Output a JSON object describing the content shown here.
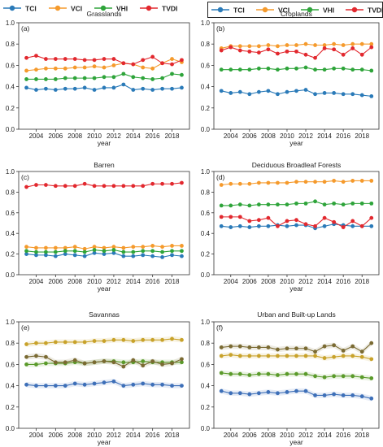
{
  "legend_left": [
    {
      "name": "TCI",
      "color": "#2a7ab8"
    },
    {
      "name": "VCI",
      "color": "#f59a2c"
    },
    {
      "name": "VHI",
      "color": "#2ea43a"
    },
    {
      "name": "TVDI",
      "color": "#e2282e"
    }
  ],
  "legend_right": [
    {
      "name": "TCI",
      "color": "#2a7ab8"
    },
    {
      "name": "VCI",
      "color": "#f59a2c"
    },
    {
      "name": "VHI",
      "color": "#2ea43a"
    },
    {
      "name": "TVDI",
      "color": "#e2282e"
    }
  ],
  "chart_data": [
    {
      "type": "line",
      "panel": "(a)",
      "title": "Grasslands",
      "xlabel": "year",
      "ylabel": "",
      "x": [
        2003,
        2004,
        2005,
        2006,
        2007,
        2008,
        2009,
        2010,
        2011,
        2012,
        2013,
        2014,
        2015,
        2016,
        2017,
        2018,
        2019
      ],
      "xticks": [
        "2004",
        "2006",
        "2008",
        "2010",
        "2012",
        "2014",
        "2016",
        "2018"
      ],
      "ylim": [
        0,
        1.0
      ],
      "yticks": [
        "0.0",
        "0.2",
        "0.4",
        "0.6",
        "0.8",
        "1.0"
      ],
      "style": "plain",
      "series": [
        {
          "name": "TCI",
          "color": "#2a7ab8",
          "values": [
            0.39,
            0.37,
            0.38,
            0.37,
            0.38,
            0.38,
            0.39,
            0.37,
            0.39,
            0.39,
            0.42,
            0.37,
            0.38,
            0.37,
            0.38,
            0.38,
            0.39
          ]
        },
        {
          "name": "VCI",
          "color": "#f59a2c",
          "values": [
            0.55,
            0.56,
            0.57,
            0.57,
            0.57,
            0.58,
            0.58,
            0.59,
            0.58,
            0.6,
            0.62,
            0.61,
            0.58,
            0.57,
            0.62,
            0.66,
            0.63
          ]
        },
        {
          "name": "VHI",
          "color": "#2ea43a",
          "values": [
            0.47,
            0.47,
            0.47,
            0.47,
            0.48,
            0.48,
            0.48,
            0.48,
            0.49,
            0.49,
            0.52,
            0.49,
            0.48,
            0.47,
            0.48,
            0.52,
            0.51
          ]
        },
        {
          "name": "TVDI",
          "color": "#e2282e",
          "values": [
            0.67,
            0.69,
            0.66,
            0.66,
            0.66,
            0.66,
            0.65,
            0.65,
            0.66,
            0.66,
            0.62,
            0.61,
            0.65,
            0.68,
            0.62,
            0.61,
            0.65
          ]
        }
      ]
    },
    {
      "type": "line",
      "panel": "(b)",
      "title": "Croplands",
      "xlabel": "year",
      "ylabel": "",
      "x": [
        2003,
        2004,
        2005,
        2006,
        2007,
        2008,
        2009,
        2010,
        2011,
        2012,
        2013,
        2014,
        2015,
        2016,
        2017,
        2018,
        2019
      ],
      "xticks": [
        "2004",
        "2006",
        "2008",
        "2010",
        "2012",
        "2014",
        "2016",
        "2018"
      ],
      "ylim": [
        0,
        1.0
      ],
      "yticks": [
        "0.0",
        "0.2",
        "0.4",
        "0.6",
        "0.8",
        "1.0"
      ],
      "style": "plain",
      "series": [
        {
          "name": "TCI",
          "color": "#2a7ab8",
          "values": [
            0.36,
            0.34,
            0.35,
            0.33,
            0.35,
            0.36,
            0.33,
            0.35,
            0.36,
            0.37,
            0.33,
            0.34,
            0.34,
            0.33,
            0.33,
            0.32,
            0.31
          ]
        },
        {
          "name": "VCI",
          "color": "#f59a2c",
          "values": [
            0.76,
            0.78,
            0.78,
            0.78,
            0.78,
            0.79,
            0.78,
            0.79,
            0.79,
            0.8,
            0.79,
            0.79,
            0.8,
            0.79,
            0.8,
            0.8,
            0.8
          ]
        },
        {
          "name": "VHI",
          "color": "#2ea43a",
          "values": [
            0.56,
            0.56,
            0.56,
            0.56,
            0.57,
            0.57,
            0.56,
            0.57,
            0.57,
            0.58,
            0.56,
            0.56,
            0.57,
            0.57,
            0.56,
            0.56,
            0.55
          ]
        },
        {
          "name": "TVDI",
          "color": "#e2282e",
          "values": [
            0.74,
            0.77,
            0.74,
            0.73,
            0.72,
            0.75,
            0.71,
            0.73,
            0.73,
            0.7,
            0.67,
            0.76,
            0.75,
            0.7,
            0.76,
            0.7,
            0.77
          ]
        }
      ]
    },
    {
      "type": "line",
      "panel": "(c)",
      "title": "Barren",
      "xlabel": "year",
      "ylabel": "",
      "x": [
        2003,
        2004,
        2005,
        2006,
        2007,
        2008,
        2009,
        2010,
        2011,
        2012,
        2013,
        2014,
        2015,
        2016,
        2017,
        2018,
        2019
      ],
      "xticks": [
        "2004",
        "2006",
        "2008",
        "2010",
        "2012",
        "2014",
        "2016",
        "2018"
      ],
      "ylim": [
        0,
        1.0
      ],
      "yticks": [
        "0.0",
        "0.2",
        "0.4",
        "0.6",
        "0.8",
        "1.0"
      ],
      "style": "plain",
      "series": [
        {
          "name": "TCI",
          "color": "#2a7ab8",
          "values": [
            0.2,
            0.19,
            0.19,
            0.18,
            0.2,
            0.19,
            0.18,
            0.21,
            0.2,
            0.21,
            0.18,
            0.18,
            0.19,
            0.18,
            0.17,
            0.19,
            0.18
          ]
        },
        {
          "name": "VCI",
          "color": "#f59a2c",
          "values": [
            0.27,
            0.26,
            0.26,
            0.26,
            0.26,
            0.27,
            0.25,
            0.27,
            0.26,
            0.27,
            0.26,
            0.27,
            0.27,
            0.28,
            0.27,
            0.28,
            0.28
          ]
        },
        {
          "name": "VHI",
          "color": "#2ea43a",
          "values": [
            0.23,
            0.22,
            0.22,
            0.22,
            0.23,
            0.23,
            0.22,
            0.24,
            0.23,
            0.24,
            0.22,
            0.22,
            0.23,
            0.23,
            0.22,
            0.23,
            0.23
          ]
        },
        {
          "name": "TVDI",
          "color": "#e2282e",
          "values": [
            0.85,
            0.87,
            0.87,
            0.86,
            0.86,
            0.86,
            0.88,
            0.86,
            0.86,
            0.86,
            0.86,
            0.86,
            0.86,
            0.88,
            0.88,
            0.88,
            0.89
          ]
        }
      ]
    },
    {
      "type": "line",
      "panel": "(d)",
      "title": "Deciduous Broadleaf Forests",
      "xlabel": "year",
      "ylabel": "",
      "x": [
        2003,
        2004,
        2005,
        2006,
        2007,
        2008,
        2009,
        2010,
        2011,
        2012,
        2013,
        2014,
        2015,
        2016,
        2017,
        2018,
        2019
      ],
      "xticks": [
        "2004",
        "2006",
        "2008",
        "2010",
        "2012",
        "2014",
        "2016",
        "2018"
      ],
      "ylim": [
        0,
        1.0
      ],
      "yticks": [
        "0.0",
        "0.2",
        "0.4",
        "0.6",
        "0.8",
        "1.0"
      ],
      "style": "plain",
      "series": [
        {
          "name": "TCI",
          "color": "#2a7ab8",
          "values": [
            0.47,
            0.46,
            0.47,
            0.46,
            0.47,
            0.47,
            0.48,
            0.47,
            0.48,
            0.48,
            0.45,
            0.47,
            0.49,
            0.48,
            0.47,
            0.47,
            0.47
          ]
        },
        {
          "name": "VCI",
          "color": "#f59a2c",
          "values": [
            0.87,
            0.88,
            0.88,
            0.88,
            0.89,
            0.89,
            0.89,
            0.89,
            0.9,
            0.9,
            0.9,
            0.9,
            0.91,
            0.9,
            0.91,
            0.91,
            0.91
          ]
        },
        {
          "name": "VHI",
          "color": "#2ea43a",
          "values": [
            0.67,
            0.67,
            0.68,
            0.67,
            0.68,
            0.68,
            0.68,
            0.68,
            0.69,
            0.69,
            0.71,
            0.68,
            0.69,
            0.68,
            0.69,
            0.69,
            0.69
          ]
        },
        {
          "name": "TVDI",
          "color": "#e2282e",
          "values": [
            0.56,
            0.56,
            0.56,
            0.52,
            0.53,
            0.55,
            0.47,
            0.52,
            0.53,
            0.49,
            0.47,
            0.55,
            0.51,
            0.46,
            0.52,
            0.47,
            0.55
          ]
        }
      ]
    },
    {
      "type": "line",
      "panel": "(e)",
      "title": "Savannas",
      "xlabel": "year",
      "ylabel": "",
      "x": [
        2003,
        2004,
        2005,
        2006,
        2007,
        2008,
        2009,
        2010,
        2011,
        2012,
        2013,
        2014,
        2015,
        2016,
        2017,
        2018,
        2019
      ],
      "xticks": [
        "2004",
        "2006",
        "2008",
        "2010",
        "2012",
        "2014",
        "2016",
        "2018"
      ],
      "ylim": [
        0,
        1.0
      ],
      "yticks": [
        "0.0",
        "0.2",
        "0.4",
        "0.6",
        "0.8",
        "1.0"
      ],
      "style": "bands",
      "series": [
        {
          "name": "TCI",
          "color": "#3d6fb8",
          "values": [
            0.41,
            0.4,
            0.4,
            0.4,
            0.4,
            0.42,
            0.41,
            0.42,
            0.43,
            0.44,
            0.4,
            0.41,
            0.42,
            0.41,
            0.41,
            0.4,
            0.4
          ]
        },
        {
          "name": "VCI",
          "color": "#c8a22a",
          "values": [
            0.79,
            0.8,
            0.8,
            0.81,
            0.81,
            0.81,
            0.81,
            0.82,
            0.82,
            0.83,
            0.83,
            0.82,
            0.83,
            0.83,
            0.83,
            0.84,
            0.83
          ]
        },
        {
          "name": "VHI",
          "color": "#5a9a2a",
          "values": [
            0.6,
            0.6,
            0.61,
            0.61,
            0.61,
            0.62,
            0.61,
            0.62,
            0.63,
            0.63,
            0.62,
            0.62,
            0.63,
            0.62,
            0.62,
            0.62,
            0.62
          ]
        },
        {
          "name": "TVDI",
          "color": "#7a6a32",
          "values": [
            0.67,
            0.68,
            0.67,
            0.62,
            0.62,
            0.64,
            0.61,
            0.62,
            0.63,
            0.62,
            0.58,
            0.64,
            0.59,
            0.63,
            0.6,
            0.61,
            0.65
          ]
        }
      ]
    },
    {
      "type": "line",
      "panel": "(f)",
      "title": "Urban and Built-up Lands",
      "xlabel": "year",
      "ylabel": "",
      "x": [
        2003,
        2004,
        2005,
        2006,
        2007,
        2008,
        2009,
        2010,
        2011,
        2012,
        2013,
        2014,
        2015,
        2016,
        2017,
        2018,
        2019
      ],
      "xticks": [
        "2004",
        "2006",
        "2008",
        "2010",
        "2012",
        "2014",
        "2016",
        "2018"
      ],
      "ylim": [
        0,
        1.0
      ],
      "yticks": [
        "0.0",
        "0.2",
        "0.4",
        "0.6",
        "0.8",
        "1.0"
      ],
      "style": "bands",
      "series": [
        {
          "name": "TCI",
          "color": "#3d6fb8",
          "values": [
            0.35,
            0.33,
            0.33,
            0.32,
            0.33,
            0.34,
            0.33,
            0.34,
            0.35,
            0.35,
            0.31,
            0.31,
            0.32,
            0.31,
            0.31,
            0.3,
            0.28
          ]
        },
        {
          "name": "VCI",
          "color": "#c8a22a",
          "values": [
            0.68,
            0.69,
            0.68,
            0.68,
            0.68,
            0.68,
            0.68,
            0.68,
            0.68,
            0.68,
            0.68,
            0.66,
            0.67,
            0.68,
            0.68,
            0.67,
            0.65
          ]
        },
        {
          "name": "VHI",
          "color": "#5a9a2a",
          "values": [
            0.52,
            0.51,
            0.51,
            0.5,
            0.51,
            0.51,
            0.5,
            0.51,
            0.51,
            0.51,
            0.49,
            0.48,
            0.49,
            0.49,
            0.49,
            0.48,
            0.47
          ]
        },
        {
          "name": "TVDI",
          "color": "#7a6a32",
          "values": [
            0.76,
            0.77,
            0.77,
            0.76,
            0.76,
            0.76,
            0.74,
            0.75,
            0.75,
            0.75,
            0.72,
            0.77,
            0.78,
            0.73,
            0.77,
            0.72,
            0.8
          ]
        }
      ]
    }
  ]
}
